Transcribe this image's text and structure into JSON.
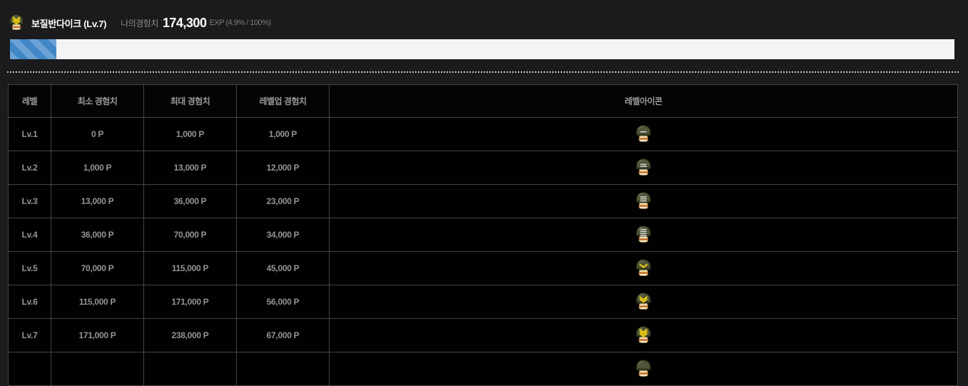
{
  "header": {
    "rank_icon": {
      "type": "chevrons",
      "count": 3
    },
    "username": "보질반다이크 (Lv.7)",
    "xp_label": "나의경험치",
    "xp_value": "174,300",
    "xp_suffix": "EXP (4.9% / 100%)"
  },
  "progress": {
    "percent": 4.9,
    "track_color": "#f4f4f4",
    "fill_color": "#4287c6",
    "stripe_color": "#6ba3d6"
  },
  "table": {
    "columns": [
      "레벨",
      "최소 경험치",
      "최대 경험치",
      "레벨업 경험치",
      "레벨아이콘"
    ],
    "rows": [
      {
        "level": "Lv.1",
        "min": "0 P",
        "max": "1,000 P",
        "levelup": "1,000 P",
        "icon": {
          "type": "bars",
          "count": 1
        }
      },
      {
        "level": "Lv.2",
        "min": "1,000 P",
        "max": "13,000 P",
        "levelup": "12,000 P",
        "icon": {
          "type": "bars",
          "count": 2
        }
      },
      {
        "level": "Lv.3",
        "min": "13,000 P",
        "max": "36,000 P",
        "levelup": "23,000 P",
        "icon": {
          "type": "bars",
          "count": 3
        }
      },
      {
        "level": "Lv.4",
        "min": "36,000 P",
        "max": "70,000 P",
        "levelup": "34,000 P",
        "icon": {
          "type": "bars",
          "count": 4
        }
      },
      {
        "level": "Lv.5",
        "min": "70,000 P",
        "max": "115,000 P",
        "levelup": "45,000 P",
        "icon": {
          "type": "chevrons",
          "count": 1
        }
      },
      {
        "level": "Lv.6",
        "min": "115,000 P",
        "max": "171,000 P",
        "levelup": "56,000 P",
        "icon": {
          "type": "chevrons",
          "count": 2
        }
      },
      {
        "level": "Lv.7",
        "min": "171,000 P",
        "max": "238,000 P",
        "levelup": "67,000 P",
        "icon": {
          "type": "chevrons",
          "count": 3
        }
      },
      {
        "level": "",
        "min": "",
        "max": "",
        "levelup": "",
        "icon": {
          "type": "plain",
          "count": 0
        },
        "partial": true
      }
    ]
  }
}
